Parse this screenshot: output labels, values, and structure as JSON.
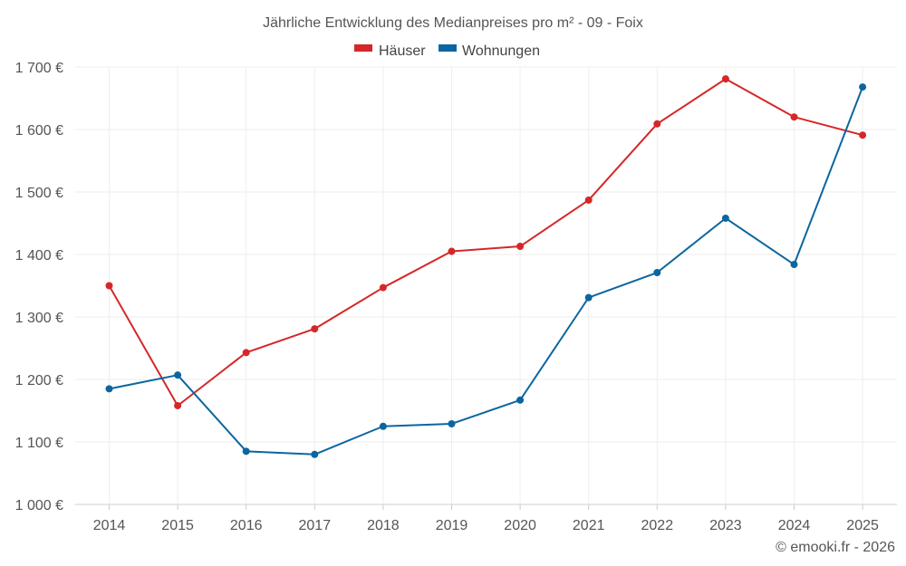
{
  "chart_data": {
    "type": "line",
    "title": "Jährliche Entwicklung des Medianpreises pro m² - 09 - Foix",
    "categories": [
      "2014",
      "2015",
      "2016",
      "2017",
      "2018",
      "2019",
      "2020",
      "2021",
      "2022",
      "2023",
      "2024",
      "2025"
    ],
    "series": [
      {
        "name": "Häuser",
        "color": "#d62728",
        "values": [
          1350,
          1158,
          1243,
          1281,
          1347,
          1405,
          1413,
          1487,
          1609,
          1681,
          1620,
          1591
        ]
      },
      {
        "name": "Wohnungen",
        "color": "#0b66a0",
        "values": [
          1185,
          1207,
          1085,
          1080,
          1125,
          1129,
          1167,
          1331,
          1371,
          1458,
          1384,
          1668
        ]
      }
    ],
    "ylim": [
      1000,
      1700
    ],
    "y_ticks": [
      1000,
      1100,
      1200,
      1300,
      1400,
      1500,
      1600,
      1700
    ],
    "y_tick_labels": [
      "1 000 €",
      "1 100 €",
      "1 200 €",
      "1 300 €",
      "1 400 €",
      "1 500 €",
      "1 600 €",
      "1 700 €"
    ],
    "legend_position": "top-center",
    "grid": true
  },
  "credit": "© emooki.fr - 2026"
}
